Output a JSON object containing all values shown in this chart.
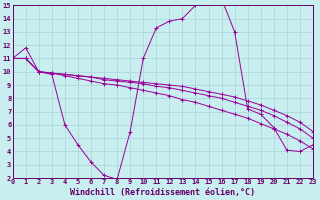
{
  "xlabel": "Windchill (Refroidissement éolien,°C)",
  "background_color": "#c8eef0",
  "grid_color": "#aad4d8",
  "line_color": "#990099",
  "marker_color": "#990099",
  "xmin": 0,
  "xmax": 23,
  "ymin": 2,
  "ymax": 15,
  "series": [
    {
      "x": [
        0,
        1,
        2,
        3,
        4,
        5,
        6,
        7,
        8,
        9,
        10,
        11,
        12,
        13,
        14,
        15,
        16,
        17,
        18,
        19,
        20,
        21,
        22,
        23
      ],
      "y": [
        11,
        11.8,
        10,
        9.8,
        6.0,
        4.5,
        3.2,
        2.2,
        1.9,
        5.5,
        11.0,
        13.3,
        13.8,
        14.0,
        15.0,
        15.5,
        15.5,
        13.0,
        7.2,
        6.8,
        5.8,
        4.1,
        4.0,
        4.5
      ]
    },
    {
      "x": [
        0,
        1,
        2,
        3,
        4,
        5,
        6,
        7,
        8,
        9,
        10,
        11,
        12,
        13,
        14,
        15,
        16,
        17,
        18,
        19,
        20,
        21,
        22,
        23
      ],
      "y": [
        11.0,
        11.0,
        10.0,
        9.9,
        9.8,
        9.7,
        9.6,
        9.5,
        9.4,
        9.3,
        9.2,
        9.1,
        9.0,
        8.9,
        8.7,
        8.5,
        8.3,
        8.1,
        7.8,
        7.5,
        7.1,
        6.7,
        6.2,
        5.5
      ]
    },
    {
      "x": [
        0,
        1,
        2,
        3,
        4,
        5,
        6,
        7,
        8,
        9,
        10,
        11,
        12,
        13,
        14,
        15,
        16,
        17,
        18,
        19,
        20,
        21,
        22,
        23
      ],
      "y": [
        11.0,
        11.0,
        10.0,
        9.9,
        9.8,
        9.7,
        9.6,
        9.4,
        9.3,
        9.2,
        9.1,
        8.9,
        8.8,
        8.6,
        8.4,
        8.2,
        8.0,
        7.7,
        7.4,
        7.1,
        6.7,
        6.2,
        5.7,
        5.0
      ]
    },
    {
      "x": [
        0,
        1,
        2,
        3,
        4,
        5,
        6,
        7,
        8,
        9,
        10,
        11,
        12,
        13,
        14,
        15,
        16,
        17,
        18,
        19,
        20,
        21,
        22,
        23
      ],
      "y": [
        11.0,
        11.0,
        10.0,
        9.9,
        9.7,
        9.5,
        9.3,
        9.1,
        9.0,
        8.8,
        8.6,
        8.4,
        8.2,
        7.9,
        7.7,
        7.4,
        7.1,
        6.8,
        6.5,
        6.1,
        5.7,
        5.3,
        4.8,
        4.2
      ]
    }
  ],
  "xticks": [
    0,
    1,
    2,
    3,
    4,
    5,
    6,
    7,
    8,
    9,
    10,
    11,
    12,
    13,
    14,
    15,
    16,
    17,
    18,
    19,
    20,
    21,
    22,
    23
  ],
  "yticks": [
    2,
    3,
    4,
    5,
    6,
    7,
    8,
    9,
    10,
    11,
    12,
    13,
    14,
    15
  ],
  "tick_color": "#660066",
  "tick_fontsize": 5.0,
  "xlabel_fontsize": 6.0,
  "axis_label_color": "#660066"
}
